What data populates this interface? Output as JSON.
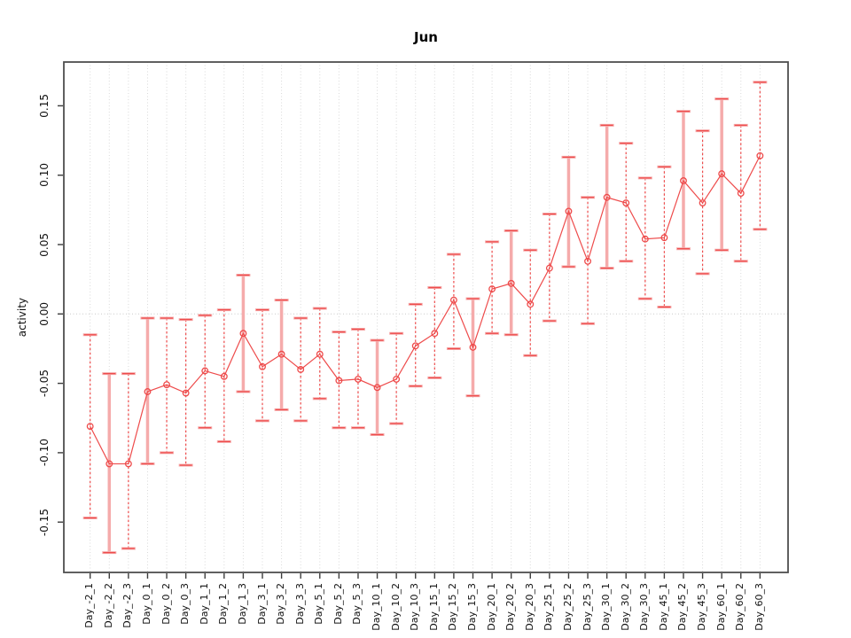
{
  "title": "Jun",
  "chart_data": {
    "type": "scatter",
    "title": "Jun",
    "xlabel": "",
    "ylabel": "activity",
    "ylim": [
      -0.186,
      0.182
    ],
    "yticks": [
      0.15,
      0.1,
      0.05,
      0.0,
      -0.05,
      -0.1,
      -0.15
    ],
    "ytick_labels": [
      "0.15",
      "0.10",
      "0.05",
      "0.00",
      "-0.05",
      "-0.10",
      "-0.15"
    ],
    "grid": "vertical-dotted",
    "zero_line": true,
    "legend": "none",
    "categories": [
      "Day_-2_1",
      "Day_-2_2",
      "Day_-2_3",
      "Day_0_1",
      "Day_0_2",
      "Day_0_3",
      "Day_1_1",
      "Day_1_2",
      "Day_1_3",
      "Day_3_1",
      "Day_3_2",
      "Day_3_3",
      "Day_5_1",
      "Day_5_2",
      "Day_5_3",
      "Day_10_1",
      "Day_10_2",
      "Day_10_3",
      "Day_15_1",
      "Day_15_2",
      "Day_15_3",
      "Day_20_1",
      "Day_20_2",
      "Day_20_3",
      "Day_25_1",
      "Day_25_2",
      "Day_25_3",
      "Day_30_1",
      "Day_30_2",
      "Day_30_3",
      "Day_45_1",
      "Day_45_2",
      "Day_45_3",
      "Day_60_1",
      "Day_60_2",
      "Day_60_3"
    ],
    "series": [
      {
        "name": "activity",
        "values": [
          -0.081,
          -0.108,
          -0.108,
          -0.056,
          -0.051,
          -0.057,
          -0.041,
          -0.045,
          -0.014,
          -0.038,
          -0.029,
          -0.04,
          -0.029,
          -0.048,
          -0.047,
          -0.053,
          -0.047,
          -0.023,
          -0.014,
          0.01,
          -0.024,
          0.018,
          0.022,
          0.007,
          0.033,
          0.074,
          0.038,
          0.084,
          0.08,
          0.054,
          0.055,
          0.096,
          0.08,
          0.101,
          0.087,
          0.114
        ],
        "lower": [
          -0.147,
          -0.172,
          -0.169,
          -0.108,
          -0.1,
          -0.109,
          -0.082,
          -0.092,
          -0.056,
          -0.077,
          -0.069,
          -0.077,
          -0.061,
          -0.082,
          -0.082,
          -0.087,
          -0.079,
          -0.052,
          -0.046,
          -0.025,
          -0.059,
          -0.014,
          -0.015,
          -0.03,
          -0.005,
          0.034,
          -0.007,
          0.033,
          0.038,
          0.011,
          0.005,
          0.047,
          0.029,
          0.046,
          0.038,
          0.061
        ],
        "upper": [
          -0.015,
          -0.043,
          -0.043,
          -0.003,
          -0.003,
          -0.004,
          -0.001,
          0.003,
          0.028,
          0.003,
          0.01,
          -0.003,
          0.004,
          -0.013,
          -0.011,
          -0.019,
          -0.014,
          0.007,
          0.019,
          0.043,
          0.011,
          0.052,
          0.06,
          0.046,
          0.072,
          0.113,
          0.084,
          0.136,
          0.123,
          0.098,
          0.106,
          0.146,
          0.132,
          0.155,
          0.136,
          0.167
        ],
        "bar_styles": [
          "dashed",
          "solid",
          "dashed",
          "solid",
          "dashed",
          "dashed",
          "dashed",
          "dashed",
          "solid",
          "dashed",
          "solid",
          "dashed",
          "dashed",
          "dashed",
          "dashed",
          "solid",
          "dashed",
          "dashed",
          "dashed",
          "dashed",
          "solid",
          "dashed",
          "solid",
          "dashed",
          "dashed",
          "solid",
          "dashed",
          "solid",
          "dashed",
          "dashed",
          "dashed",
          "solid",
          "dashed",
          "solid",
          "dashed",
          "dashed"
        ]
      }
    ]
  },
  "colors": {
    "point_red": "#ee4b4b",
    "bar_salmon": "#f5abab",
    "grid_gray": "#d9d9d9",
    "zero_line_gray": "#c9c9c9",
    "axis_gray": "#4e4e4e",
    "tick_dark": "#3c3c3c",
    "text_black": "#111111"
  }
}
